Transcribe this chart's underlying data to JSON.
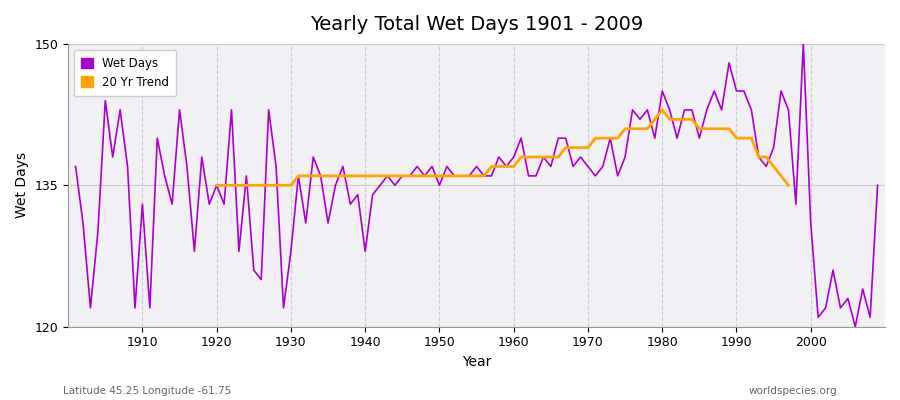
{
  "title": "Yearly Total Wet Days 1901 - 2009",
  "xlabel": "Year",
  "ylabel": "Wet Days",
  "subtitle": "Latitude 45.25 Longitude -61.75",
  "watermark": "worldspecies.org",
  "ylim": [
    120,
    150
  ],
  "yticks": [
    120,
    135,
    150
  ],
  "line_color": "#AA00CC",
  "trend_color": "#FFA500",
  "bg_color": "#F0F0F5",
  "years": [
    1901,
    1902,
    1903,
    1904,
    1905,
    1906,
    1907,
    1908,
    1909,
    1910,
    1911,
    1912,
    1913,
    1914,
    1915,
    1916,
    1917,
    1918,
    1919,
    1920,
    1921,
    1922,
    1923,
    1924,
    1925,
    1926,
    1927,
    1928,
    1929,
    1930,
    1931,
    1932,
    1933,
    1934,
    1935,
    1936,
    1937,
    1938,
    1939,
    1940,
    1941,
    1942,
    1943,
    1944,
    1945,
    1946,
    1947,
    1948,
    1949,
    1950,
    1951,
    1952,
    1953,
    1954,
    1955,
    1956,
    1957,
    1958,
    1959,
    1960,
    1961,
    1962,
    1963,
    1964,
    1965,
    1966,
    1967,
    1968,
    1969,
    1970,
    1971,
    1972,
    1973,
    1974,
    1975,
    1976,
    1977,
    1978,
    1979,
    1980,
    1981,
    1982,
    1983,
    1984,
    1985,
    1986,
    1987,
    1988,
    1989,
    1990,
    1991,
    1992,
    1993,
    1994,
    1995,
    1996,
    1997,
    1998,
    1999,
    2000,
    2001,
    2002,
    2003,
    2004,
    2005,
    2006,
    2007,
    2008,
    2009
  ],
  "wet_days": [
    137,
    131,
    122,
    130,
    144,
    138,
    143,
    137,
    122,
    133,
    122,
    140,
    136,
    133,
    143,
    137,
    128,
    138,
    133,
    135,
    133,
    143,
    128,
    136,
    126,
    125,
    143,
    137,
    122,
    128,
    136,
    131,
    138,
    136,
    131,
    135,
    137,
    133,
    134,
    128,
    134,
    135,
    136,
    135,
    136,
    136,
    137,
    136,
    137,
    135,
    137,
    136,
    136,
    136,
    137,
    136,
    136,
    138,
    137,
    138,
    140,
    136,
    136,
    138,
    137,
    140,
    140,
    137,
    138,
    137,
    136,
    137,
    140,
    136,
    138,
    143,
    142,
    143,
    140,
    145,
    143,
    140,
    143,
    143,
    140,
    143,
    145,
    143,
    148,
    145,
    145,
    143,
    138,
    137,
    139,
    145,
    143,
    133,
    150,
    131,
    121,
    122,
    126,
    122,
    123,
    120,
    124,
    121,
    135
  ],
  "trend": [
    null,
    null,
    null,
    null,
    null,
    null,
    null,
    null,
    null,
    null,
    null,
    null,
    null,
    null,
    null,
    null,
    null,
    null,
    null,
    135,
    135,
    135,
    135,
    135,
    135,
    135,
    135,
    135,
    135,
    135,
    136,
    136,
    136,
    136,
    136,
    136,
    136,
    136,
    136,
    136,
    136,
    136,
    136,
    136,
    136,
    136,
    136,
    136,
    136,
    136,
    136,
    136,
    136,
    136,
    136,
    136,
    137,
    137,
    137,
    137,
    138,
    138,
    138,
    138,
    138,
    138,
    139,
    139,
    139,
    139,
    140,
    140,
    140,
    140,
    141,
    141,
    141,
    141,
    142,
    143,
    142,
    142,
    142,
    142,
    141,
    141,
    141,
    141,
    141,
    140,
    140,
    140,
    138,
    138,
    137,
    136,
    135,
    null,
    null,
    null,
    null,
    null,
    null,
    null,
    null,
    null,
    null,
    null,
    null
  ]
}
